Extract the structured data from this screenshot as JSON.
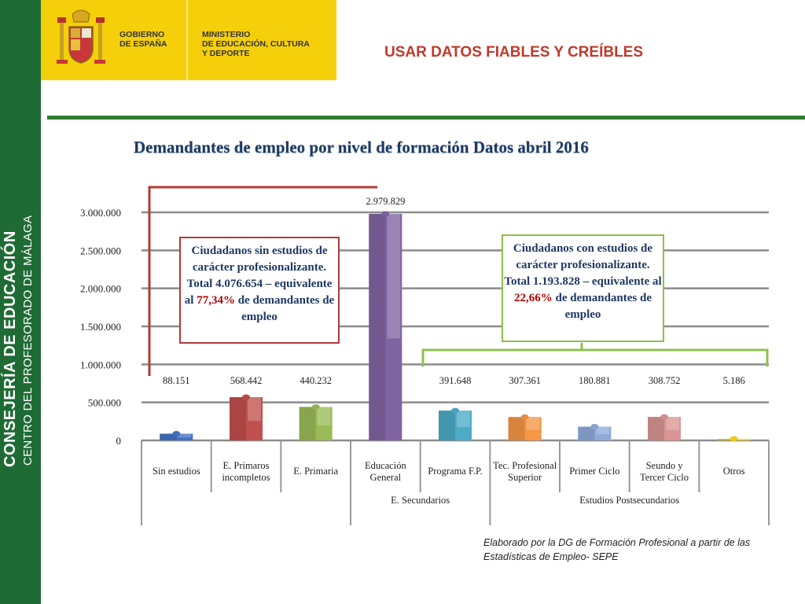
{
  "sidebar": {
    "line1": "CONSEJERÍA DE EDUCACIÓN",
    "line2": "CENTRO DEL PROFESORADO DE MÁLAGA",
    "color": "#1f6b35"
  },
  "header": {
    "gov_text": [
      "GOBIERNO",
      "DE ESPAÑA"
    ],
    "ministry_text": [
      "MINISTERIO",
      "DE EDUCACIÓN, CULTURA",
      "Y DEPORTE"
    ],
    "banner_color": "#f5cf0a",
    "slide_title": "USAR DATOS FIABLES Y CREÍBLES"
  },
  "callouts": {
    "left": {
      "text_before": "Ciudadanos sin estudios de carácter profesionalizante. Total 4.076.654 – equivalente al ",
      "pct": "77,34%",
      "text_after": " de demandantes de empleo"
    },
    "right": {
      "text_before": "Ciudadanos con estudios de carácter profesionalizante. Total 1.193.828 – equivalente al ",
      "pct": "22,66%",
      "text_after": " de demandantes de empleo"
    }
  },
  "source": "Elaborado por la DG de Formación Profesional a partir de las Estadísticas de Empleo- SEPE",
  "chart_data": {
    "type": "bar",
    "title": "Demandantes de empleo por nivel de formación Datos abril 2016",
    "categories": [
      "Sin estudios",
      "E. Primaros incompletos",
      "E. Primaria",
      "Educación General",
      "Programa F.P.",
      "Tec. Profesional Superior",
      "Primer Ciclo",
      "Seundo y Tercer Ciclo",
      "Otros"
    ],
    "category_lines": [
      [
        "Sin estudios"
      ],
      [
        "E. Primaros",
        "incompletos"
      ],
      [
        "E. Primaria"
      ],
      [
        "Educación",
        "General"
      ],
      [
        "Programa F.P."
      ],
      [
        "Tec. Profesional",
        "Superior"
      ],
      [
        "Primer Ciclo"
      ],
      [
        "Seundo y",
        "Tercer Ciclo"
      ],
      [
        "Otros"
      ]
    ],
    "values": [
      88151,
      568442,
      440232,
      2979829,
      391648,
      307361,
      180881,
      308752,
      5186
    ],
    "value_labels": [
      "88.151",
      "568.442",
      "440.232",
      "2.979.829",
      "391.648",
      "307.361",
      "180.881",
      "308.752",
      "5.186"
    ],
    "colors": [
      "#4472c4",
      "#c0504d",
      "#9bbb59",
      "#8064a2",
      "#4bacc6",
      "#f79646",
      "#8eaadb",
      "#d99694",
      "#f2d21b"
    ],
    "groups": [
      {
        "label": "E. Secundarios",
        "start": 3,
        "end": 4
      },
      {
        "label": "Estudios Postsecundarios",
        "start": 5,
        "end": 8
      }
    ],
    "yticks": [
      0,
      500000,
      1000000,
      1500000,
      2000000,
      2500000,
      3000000
    ],
    "ytick_labels": [
      "0",
      "500.000",
      "1.000.000",
      "1.500.000",
      "2.000.000",
      "2.500.000",
      "3.000.000"
    ],
    "ylim": [
      0,
      3000000
    ],
    "grid": true,
    "legend": "none"
  }
}
